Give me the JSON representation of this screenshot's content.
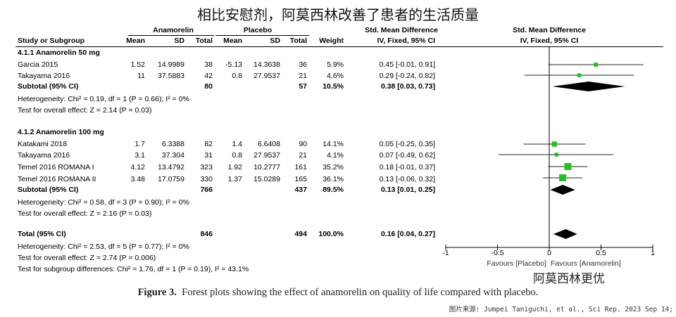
{
  "top_title": "相比安慰剂，阿莫西林改善了患者的生活质量",
  "headers": {
    "group_anam": "Anamorelin",
    "group_plac": "Placebo",
    "smd_top": "Std. Mean Difference",
    "smd_top_plot": "Std. Mean Difference",
    "study_col": "Study or Subgroup",
    "mean": "Mean",
    "sd": "SD",
    "total": "Total",
    "weight": "Weight",
    "method": "IV, Fixed, 95% CI",
    "method_plot": "IV, Fixed, 95% CI"
  },
  "subgroups": [
    {
      "title": "4.1.1 Anamorelin 50 mg",
      "studies": [
        {
          "name": "Garcia 2015",
          "a_mean": "1.52",
          "a_sd": "14.9989",
          "a_total": "38",
          "p_mean": "-5.13",
          "p_sd": "14.3638",
          "p_total": "36",
          "weight": "5.9%",
          "ci": "0.45 [-0.01, 0.91]"
        },
        {
          "name": "Takayama 2016",
          "a_mean": "11",
          "a_sd": "37.5883",
          "a_total": "42",
          "p_mean": "0.8",
          "p_sd": "27.9537",
          "p_total": "21",
          "weight": "4.6%",
          "ci": "0.29 [-0.24, 0.82]"
        }
      ],
      "subtotal": {
        "label": "Subtotal (95% CI)",
        "a_total": "80",
        "p_total": "57",
        "weight": "10.5%",
        "ci": "0.38 [0.03, 0.73]"
      },
      "heterogeneity": "Heterogeneity: Chi² = 0.19, df = 1 (P = 0.66); I² = 0%",
      "overall": "Test for overall effect: Z = 2.14 (P = 0.03)"
    },
    {
      "title": "4.1.2 Anamorelin 100 mg",
      "studies": [
        {
          "name": "Katakami 2018",
          "a_mean": "1.7",
          "a_sd": "6.3388",
          "a_total": "82",
          "p_mean": "1.4",
          "p_sd": "6.6408",
          "p_total": "90",
          "weight": "14.1%",
          "ci": "0.05 [-0.25, 0.35]"
        },
        {
          "name": "Takayama 2016",
          "a_mean": "3.1",
          "a_sd": "37.304",
          "a_total": "31",
          "p_mean": "0.8",
          "p_sd": "27.9537",
          "p_total": "21",
          "weight": "4.1%",
          "ci": "0.07 [-0.49, 0.62]"
        },
        {
          "name": "Temel 2016 ROMANA I",
          "a_mean": "4.12",
          "a_sd": "13.4792",
          "a_total": "323",
          "p_mean": "1.92",
          "p_sd": "10.2777",
          "p_total": "161",
          "weight": "35.2%",
          "ci": "0.18 [-0.01, 0.37]"
        },
        {
          "name": "Temel 2016 ROMANA II",
          "a_mean": "3.48",
          "a_sd": "17.0759",
          "a_total": "330",
          "p_mean": "1.37",
          "p_sd": "15.0289",
          "p_total": "165",
          "weight": "36.1%",
          "ci": "0.13 [-0.06, 0.32]"
        }
      ],
      "subtotal": {
        "label": "Subtotal (95% CI)",
        "a_total": "766",
        "p_total": "437",
        "weight": "89.5%",
        "ci": "0.13 [0.01, 0.25]"
      },
      "heterogeneity": "Heterogeneity: Chi² = 0.58, df = 3 (P = 0.90); I² = 0%",
      "overall": "Test for overall effect: Z = 2.16 (P = 0.03)"
    }
  ],
  "total": {
    "label": "Total (95% CI)",
    "a_total": "846",
    "p_total": "494",
    "weight": "100.0%",
    "ci": "0.16 [0.04, 0.27]",
    "heterogeneity": "Heterogeneity: Chi² = 2.53, df = 5 (P = 0.77); I² = 0%",
    "overall": "Test for overall effect: Z = 2.74 (P = 0.006)",
    "subgroup_diff": "Test for subgroup differences: Chi² = 1.76, df = 1 (P = 0.19), I² = 43.1%"
  },
  "chart_data": {
    "type": "forest",
    "xlim": [
      -1,
      1
    ],
    "ticks": [
      "-1",
      "-0.5",
      "0",
      "0.5",
      "1"
    ],
    "tick_values": [
      -1,
      -0.5,
      0,
      0.5,
      1
    ],
    "favours_left": "Favours [Placebo]",
    "favours_right": "Favours [Anamorelin]",
    "studies": [
      {
        "name": "Garcia 2015",
        "smd": 0.45,
        "lo": -0.01,
        "hi": 0.91,
        "weight": 5.9
      },
      {
        "name": "Takayama 2016",
        "smd": 0.29,
        "lo": -0.24,
        "hi": 0.82,
        "weight": 4.6
      },
      {
        "name": "Katakami 2018",
        "smd": 0.05,
        "lo": -0.25,
        "hi": 0.35,
        "weight": 14.1
      },
      {
        "name": "Takayama 2016",
        "smd": 0.07,
        "lo": -0.49,
        "hi": 0.62,
        "weight": 4.1
      },
      {
        "name": "Temel 2016 ROMANA I",
        "smd": 0.18,
        "lo": -0.01,
        "hi": 0.37,
        "weight": 35.2
      },
      {
        "name": "Temel 2016 ROMANA II",
        "smd": 0.13,
        "lo": -0.06,
        "hi": 0.32,
        "weight": 36.1
      }
    ],
    "subtotals": [
      {
        "name": "Subtotal (95% CI) 4.1.1",
        "smd": 0.38,
        "lo": 0.03,
        "hi": 0.73
      },
      {
        "name": "Subtotal (95% CI) 4.1.2",
        "smd": 0.13,
        "lo": 0.01,
        "hi": 0.25
      }
    ],
    "total": {
      "name": "Total (95% CI)",
      "smd": 0.16,
      "lo": 0.04,
      "hi": 0.27
    },
    "colors": {
      "marker": "#22c022",
      "diamond": "#000000"
    }
  },
  "annotation": "阿莫西林更优",
  "caption": {
    "bold": "Figure 3.",
    "text": "Forest plots showing the effect of anamorelin on quality of life compared with placebo."
  },
  "source": "图片来源: Jumpei Taniguchi, et al., Sci Rep. 2023 Sep 14;"
}
